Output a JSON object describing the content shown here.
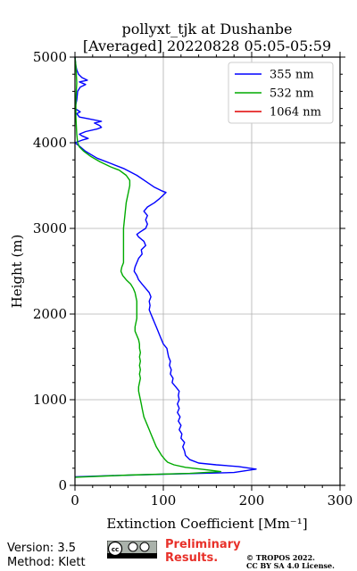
{
  "chart_data": {
    "type": "line",
    "title_line1": "pollyxt_tjk at Dushanbe",
    "title_line2": "[Averaged] 20220828 05:05-05:59",
    "xlabel": "Extinction Coefficient [Mm⁻¹]",
    "ylabel": "Height (m)",
    "xlim": [
      0,
      300
    ],
    "ylim": [
      0,
      5000
    ],
    "xticks": [
      0,
      100,
      200,
      300
    ],
    "yticks": [
      0,
      1000,
      2000,
      3000,
      4000,
      5000
    ],
    "grid": true,
    "legend_position": "top-right",
    "series": [
      {
        "name": "355 nm",
        "color": "#0000ff",
        "points": [
          [
            0,
            100
          ],
          [
            30,
            110
          ],
          [
            100,
            130
          ],
          [
            180,
            150
          ],
          [
            205,
            190
          ],
          [
            185,
            220
          ],
          [
            160,
            240
          ],
          [
            140,
            260
          ],
          [
            130,
            300
          ],
          [
            125,
            350
          ],
          [
            124,
            400
          ],
          [
            122,
            450
          ],
          [
            124,
            500
          ],
          [
            120,
            550
          ],
          [
            121,
            600
          ],
          [
            118,
            650
          ],
          [
            120,
            700
          ],
          [
            117,
            750
          ],
          [
            119,
            800
          ],
          [
            116,
            850
          ],
          [
            118,
            900
          ],
          [
            116,
            950
          ],
          [
            118,
            1000
          ],
          [
            117,
            1050
          ],
          [
            118,
            1100
          ],
          [
            114,
            1150
          ],
          [
            110,
            1200
          ],
          [
            111,
            1250
          ],
          [
            108,
            1300
          ],
          [
            109,
            1350
          ],
          [
            107,
            1400
          ],
          [
            108,
            1450
          ],
          [
            106,
            1500
          ],
          [
            105,
            1550
          ],
          [
            104,
            1600
          ],
          [
            100,
            1650
          ],
          [
            98,
            1700
          ],
          [
            96,
            1750
          ],
          [
            94,
            1800
          ],
          [
            92,
            1850
          ],
          [
            90,
            1900
          ],
          [
            88,
            1950
          ],
          [
            86,
            2000
          ],
          [
            84,
            2050
          ],
          [
            85,
            2100
          ],
          [
            84,
            2150
          ],
          [
            86,
            2200
          ],
          [
            84,
            2250
          ],
          [
            80,
            2300
          ],
          [
            76,
            2350
          ],
          [
            72,
            2400
          ],
          [
            70,
            2450
          ],
          [
            67,
            2500
          ],
          [
            68,
            2550
          ],
          [
            70,
            2600
          ],
          [
            72,
            2650
          ],
          [
            76,
            2700
          ],
          [
            75,
            2750
          ],
          [
            80,
            2800
          ],
          [
            78,
            2850
          ],
          [
            72,
            2900
          ],
          [
            70,
            2930
          ],
          [
            74,
            2960
          ],
          [
            80,
            3000
          ],
          [
            82,
            3050
          ],
          [
            80,
            3100
          ],
          [
            82,
            3150
          ],
          [
            78,
            3200
          ],
          [
            82,
            3250
          ],
          [
            90,
            3300
          ],
          [
            96,
            3350
          ],
          [
            103,
            3420
          ],
          [
            98,
            3440
          ],
          [
            90,
            3480
          ],
          [
            80,
            3550
          ],
          [
            70,
            3620
          ],
          [
            55,
            3700
          ],
          [
            40,
            3760
          ],
          [
            25,
            3820
          ],
          [
            12,
            3900
          ],
          [
            5,
            3960
          ],
          [
            0,
            4000
          ],
          [
            8,
            4030
          ],
          [
            15,
            4050
          ],
          [
            8,
            4080
          ],
          [
            5,
            4100
          ],
          [
            12,
            4130
          ],
          [
            25,
            4160
          ],
          [
            30,
            4180
          ],
          [
            28,
            4200
          ],
          [
            22,
            4230
          ],
          [
            30,
            4250
          ],
          [
            15,
            4280
          ],
          [
            5,
            4300
          ],
          [
            2,
            4340
          ],
          [
            6,
            4360
          ],
          [
            0,
            4400
          ],
          [
            2,
            4500
          ],
          [
            3,
            4600
          ],
          [
            6,
            4650
          ],
          [
            12,
            4680
          ],
          [
            5,
            4710
          ],
          [
            14,
            4730
          ],
          [
            8,
            4760
          ],
          [
            4,
            4800
          ],
          [
            2,
            4850
          ],
          [
            1,
            4900
          ],
          [
            0,
            5000
          ]
        ]
      },
      {
        "name": "532 nm",
        "color": "#00aa00",
        "points": [
          [
            0,
            95
          ],
          [
            60,
            120
          ],
          [
            130,
            140
          ],
          [
            165,
            160
          ],
          [
            150,
            180
          ],
          [
            125,
            210
          ],
          [
            112,
            240
          ],
          [
            105,
            270
          ],
          [
            102,
            300
          ],
          [
            98,
            350
          ],
          [
            95,
            400
          ],
          [
            92,
            450
          ],
          [
            90,
            500
          ],
          [
            88,
            550
          ],
          [
            86,
            600
          ],
          [
            84,
            650
          ],
          [
            82,
            700
          ],
          [
            80,
            750
          ],
          [
            78,
            800
          ],
          [
            77,
            850
          ],
          [
            76,
            900
          ],
          [
            75,
            950
          ],
          [
            74,
            1000
          ],
          [
            73,
            1050
          ],
          [
            72,
            1100
          ],
          [
            72,
            1150
          ],
          [
            73,
            1200
          ],
          [
            74,
            1250
          ],
          [
            73,
            1300
          ],
          [
            74,
            1350
          ],
          [
            73,
            1400
          ],
          [
            74,
            1450
          ],
          [
            73,
            1500
          ],
          [
            74,
            1550
          ],
          [
            73,
            1600
          ],
          [
            73,
            1650
          ],
          [
            72,
            1700
          ],
          [
            70,
            1750
          ],
          [
            68,
            1800
          ],
          [
            68,
            1850
          ],
          [
            69,
            1900
          ],
          [
            70,
            1950
          ],
          [
            70,
            2000
          ],
          [
            70,
            2050
          ],
          [
            70,
            2100
          ],
          [
            70,
            2150
          ],
          [
            69,
            2200
          ],
          [
            68,
            2250
          ],
          [
            66,
            2300
          ],
          [
            63,
            2350
          ],
          [
            58,
            2400
          ],
          [
            54,
            2450
          ],
          [
            52,
            2500
          ],
          [
            53,
            2550
          ],
          [
            55,
            2600
          ],
          [
            55,
            2700
          ],
          [
            55,
            2800
          ],
          [
            55,
            2900
          ],
          [
            55,
            3000
          ],
          [
            56,
            3100
          ],
          [
            57,
            3200
          ],
          [
            58,
            3300
          ],
          [
            60,
            3400
          ],
          [
            62,
            3500
          ],
          [
            62,
            3560
          ],
          [
            58,
            3620
          ],
          [
            50,
            3680
          ],
          [
            40,
            3720
          ],
          [
            28,
            3780
          ],
          [
            18,
            3840
          ],
          [
            10,
            3900
          ],
          [
            5,
            3950
          ],
          [
            3,
            4000
          ],
          [
            2,
            4100
          ],
          [
            1,
            4300
          ],
          [
            1,
            4500
          ],
          [
            2,
            4700
          ],
          [
            1,
            4900
          ],
          [
            0,
            5000
          ]
        ]
      },
      {
        "name": "1064 nm",
        "color": "#e00000",
        "points": []
      }
    ]
  },
  "footer": {
    "version": "Version: 3.5",
    "method": "Method: Klett",
    "preliminary_line1": "Preliminary",
    "preliminary_line2": "Results.",
    "copyright": "© TROPOS 2022.",
    "license": "CC BY SA 4.0 License."
  }
}
